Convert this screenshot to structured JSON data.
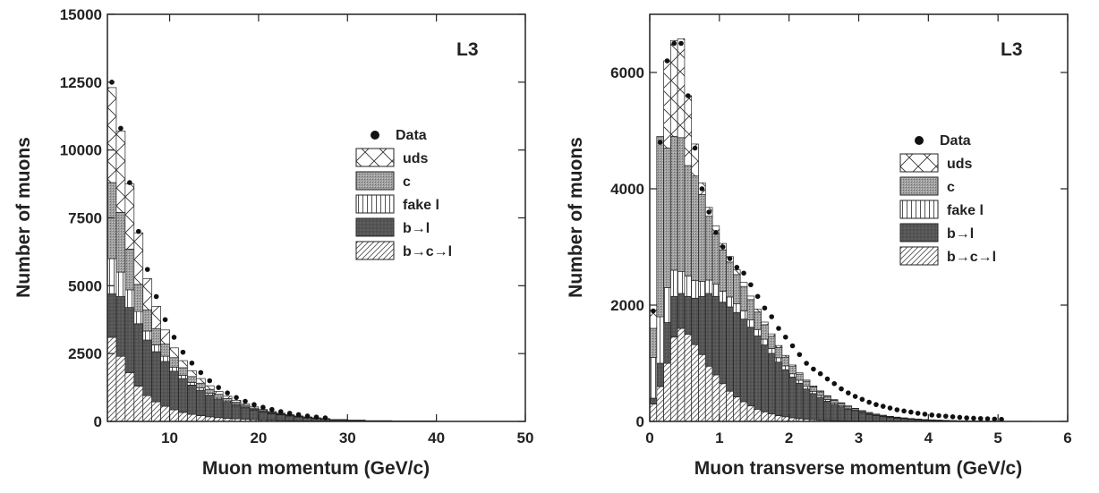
{
  "chart_data": [
    {
      "type": "bar",
      "stacked": true,
      "experiment_label": "L3",
      "xlabel": "Muon momentum (GeV/c)",
      "ylabel": "Number of muons",
      "xlim": [
        3,
        50
      ],
      "ylim": [
        0,
        15000
      ],
      "xticks": [
        10,
        20,
        30,
        40,
        50
      ],
      "xtick_labels": [
        "10",
        "20",
        "30",
        "40",
        "50"
      ],
      "yticks": [
        0,
        2500,
        5000,
        7500,
        10000,
        12500,
        15000
      ],
      "ytick_labels": [
        "0",
        "2500",
        "5000",
        "7500",
        "10000",
        "12500",
        "15000"
      ],
      "bin_edges": [
        3,
        4,
        5,
        6,
        7,
        8,
        9,
        10,
        11,
        12,
        13,
        14,
        15,
        16,
        17,
        18,
        19,
        20,
        21,
        22,
        23,
        24,
        25,
        26,
        27,
        28,
        30,
        32,
        35,
        40,
        45,
        50
      ],
      "legend": [
        {
          "key": "data",
          "label": "Data"
        },
        {
          "key": "uds",
          "label": "uds"
        },
        {
          "key": "c",
          "label": "c"
        },
        {
          "key": "fake",
          "label": "fake l"
        },
        {
          "key": "bl",
          "label": "b→l"
        },
        {
          "key": "bcl",
          "label": "b→c→l"
        }
      ],
      "series": [
        {
          "key": "bcl",
          "values": [
            3100,
            2400,
            1800,
            1300,
            950,
            720,
            560,
            430,
            330,
            260,
            210,
            170,
            140,
            115,
            95,
            80,
            65,
            55,
            45,
            38,
            32,
            26,
            22,
            18,
            15,
            10,
            7,
            4,
            2,
            1,
            0
          ]
        },
        {
          "key": "bl",
          "values": [
            1600,
            2200,
            2400,
            2300,
            2050,
            1850,
            1650,
            1420,
            1250,
            1080,
            940,
            800,
            690,
            590,
            500,
            420,
            350,
            290,
            240,
            200,
            165,
            135,
            110,
            88,
            70,
            45,
            30,
            16,
            8,
            3,
            1
          ]
        },
        {
          "key": "fake",
          "values": [
            1300,
            900,
            650,
            450,
            330,
            250,
            190,
            150,
            120,
            95,
            80,
            65,
            55,
            45,
            38,
            32,
            27,
            23,
            20,
            17,
            14,
            12,
            10,
            8,
            7,
            5,
            3,
            2,
            1,
            0,
            0
          ]
        },
        {
          "key": "c",
          "values": [
            2800,
            2200,
            1500,
            1000,
            780,
            600,
            450,
            350,
            280,
            220,
            180,
            145,
            115,
            92,
            75,
            60,
            48,
            38,
            30,
            24,
            19,
            15,
            12,
            9,
            7,
            5,
            3,
            2,
            1,
            0,
            0
          ]
        },
        {
          "key": "uds",
          "values": [
            3500,
            3000,
            2400,
            1900,
            1150,
            820,
            520,
            360,
            260,
            210,
            170,
            135,
            105,
            85,
            70,
            55,
            45,
            35,
            28,
            23,
            18,
            15,
            12,
            10,
            8,
            6,
            4,
            3,
            2,
            1,
            0
          ]
        }
      ],
      "data_points": {
        "x": [
          3.5,
          4.5,
          5.5,
          6.5,
          7.5,
          8.5,
          9.5,
          10.5,
          11.5,
          12.5,
          13.5,
          14.5,
          15.5,
          16.5,
          17.5,
          18.5,
          19.5,
          20.5,
          21.5,
          22.5,
          23.5,
          24.5,
          25.5,
          26.5,
          27.5
        ],
        "y": [
          12500,
          10800,
          8800,
          7000,
          5600,
          4600,
          3750,
          3100,
          2550,
          2150,
          1800,
          1500,
          1250,
          1050,
          880,
          740,
          620,
          520,
          440,
          360,
          300,
          250,
          200,
          160,
          130
        ]
      }
    },
    {
      "type": "bar",
      "stacked": true,
      "experiment_label": "L3",
      "xlabel": "Muon transverse momentum (GeV/c)",
      "ylabel": "Number of muons",
      "xlim": [
        0,
        6
      ],
      "ylim": [
        0,
        7000
      ],
      "xticks": [
        0,
        1,
        2,
        3,
        4,
        5,
        6
      ],
      "xtick_labels": [
        "0",
        "1",
        "2",
        "3",
        "4",
        "5",
        "6"
      ],
      "yticks": [
        0,
        2000,
        4000,
        6000
      ],
      "ytick_labels": [
        "0",
        "2000",
        "4000",
        "6000"
      ],
      "bin_edges": [
        0,
        0.1,
        0.2,
        0.3,
        0.4,
        0.5,
        0.6,
        0.7,
        0.8,
        0.9,
        1.0,
        1.1,
        1.2,
        1.3,
        1.4,
        1.5,
        1.6,
        1.7,
        1.8,
        1.9,
        2.0,
        2.1,
        2.2,
        2.3,
        2.4,
        2.5,
        2.6,
        2.7,
        2.8,
        2.9,
        3.0,
        3.1,
        3.2,
        3.3,
        3.4,
        3.5,
        3.6,
        3.7,
        3.8,
        3.9,
        4.0,
        4.1,
        4.2,
        4.3,
        4.4,
        4.5,
        4.6,
        4.7,
        4.8,
        4.9,
        5.0,
        5.5,
        6.0
      ],
      "legend": [
        {
          "key": "data",
          "label": "Data"
        },
        {
          "key": "uds",
          "label": "uds"
        },
        {
          "key": "c",
          "label": "c"
        },
        {
          "key": "fake",
          "label": "fake l"
        },
        {
          "key": "bl",
          "label": "b→l"
        },
        {
          "key": "bcl",
          "label": "b→c→l"
        }
      ],
      "series": [
        {
          "key": "bcl",
          "values": [
            300,
            600,
            1000,
            1450,
            1600,
            1500,
            1320,
            1150,
            950,
            800,
            650,
            520,
            420,
            340,
            270,
            210,
            165,
            130,
            100,
            80,
            62,
            48,
            38,
            30,
            24,
            19,
            15,
            12,
            9,
            7,
            5,
            4,
            3,
            2,
            2,
            1,
            1,
            1,
            1,
            0,
            0,
            0,
            0,
            0,
            0,
            0,
            0,
            0,
            0,
            0,
            0,
            0
          ]
        },
        {
          "key": "bl",
          "values": [
            100,
            400,
            700,
            700,
            600,
            650,
            800,
            1000,
            1250,
            1350,
            1400,
            1450,
            1450,
            1420,
            1350,
            1260,
            1150,
            1040,
            920,
            810,
            700,
            610,
            520,
            450,
            390,
            330,
            280,
            240,
            200,
            170,
            140,
            115,
            95,
            80,
            65,
            55,
            45,
            36,
            30,
            24,
            20,
            16,
            13,
            10,
            8,
            7,
            5,
            4,
            3,
            3,
            2,
            1
          ]
        },
        {
          "key": "fake",
          "values": [
            700,
            800,
            600,
            450,
            380,
            350,
            300,
            260,
            230,
            210,
            190,
            170,
            155,
            140,
            125,
            110,
            98,
            85,
            75,
            65,
            57,
            50,
            44,
            38,
            33,
            28,
            24,
            21,
            18,
            15,
            13,
            11,
            9,
            8,
            7,
            6,
            5,
            4,
            3,
            3,
            2,
            2,
            2,
            1,
            1,
            1,
            1,
            1,
            0,
            0,
            0,
            0
          ]
        },
        {
          "key": "c",
          "values": [
            500,
            3100,
            2400,
            2300,
            2300,
            1900,
            1800,
            1490,
            1100,
            870,
            710,
            600,
            500,
            420,
            350,
            300,
            250,
            210,
            175,
            150,
            125,
            105,
            90,
            75,
            63,
            53,
            45,
            38,
            32,
            27,
            22,
            19,
            16,
            13,
            11,
            9,
            8,
            7,
            6,
            5,
            4,
            3,
            3,
            2,
            2,
            2,
            1,
            1,
            1,
            1,
            1,
            0
          ]
        },
        {
          "key": "uds",
          "values": [
            400,
            0,
            1500,
            1650,
            1700,
            1200,
            550,
            200,
            150,
            130,
            110,
            95,
            80,
            70,
            60,
            52,
            45,
            40,
            35,
            30,
            26,
            22,
            19,
            17,
            15,
            13,
            11,
            10,
            8,
            7,
            6,
            5,
            4,
            4,
            3,
            3,
            2,
            2,
            2,
            1,
            1,
            1,
            1,
            1,
            1,
            0,
            0,
            0,
            0,
            0,
            0,
            0
          ]
        }
      ],
      "data_points": {
        "x": [
          0.05,
          0.15,
          0.25,
          0.35,
          0.45,
          0.55,
          0.65,
          0.75,
          0.85,
          0.95,
          1.05,
          1.15,
          1.25,
          1.35,
          1.45,
          1.55,
          1.65,
          1.75,
          1.85,
          1.95,
          2.05,
          2.15,
          2.25,
          2.35,
          2.45,
          2.55,
          2.65,
          2.75,
          2.85,
          2.95,
          3.05,
          3.15,
          3.25,
          3.35,
          3.45,
          3.55,
          3.65,
          3.75,
          3.85,
          3.95,
          4.05,
          4.15,
          4.25,
          4.35,
          4.45,
          4.55,
          4.65,
          4.75,
          4.85,
          4.95,
          5.05
        ],
        "y": [
          1900,
          4800,
          6200,
          6500,
          6500,
          5600,
          4700,
          4000,
          3600,
          3250,
          3000,
          2800,
          2650,
          2550,
          2350,
          2150,
          1950,
          1800,
          1600,
          1450,
          1300,
          1150,
          1000,
          900,
          820,
          730,
          650,
          560,
          490,
          430,
          380,
          330,
          290,
          260,
          230,
          200,
          180,
          160,
          140,
          125,
          110,
          100,
          90,
          80,
          70,
          60,
          55,
          50,
          45,
          40,
          35
        ]
      }
    }
  ]
}
